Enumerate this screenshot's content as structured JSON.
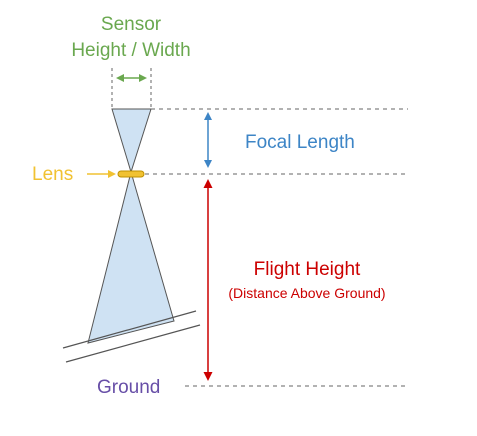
{
  "labels": {
    "sensor_line1": "Sensor",
    "sensor_line2": "Height / Width",
    "focal_length": "Focal Length",
    "lens": "Lens",
    "flight_height": "Flight Height",
    "flight_height_sub": "(Distance Above Ground)",
    "ground": "Ground"
  },
  "colors": {
    "sensor": "#6aa84f",
    "focal_length": "#3d85c6",
    "lens": "#f1c232",
    "flight_height": "#cc0000",
    "ground": "#674ea7",
    "cone_fill": "#cfe2f3",
    "outline": "#555555",
    "dashed": "#666666"
  }
}
